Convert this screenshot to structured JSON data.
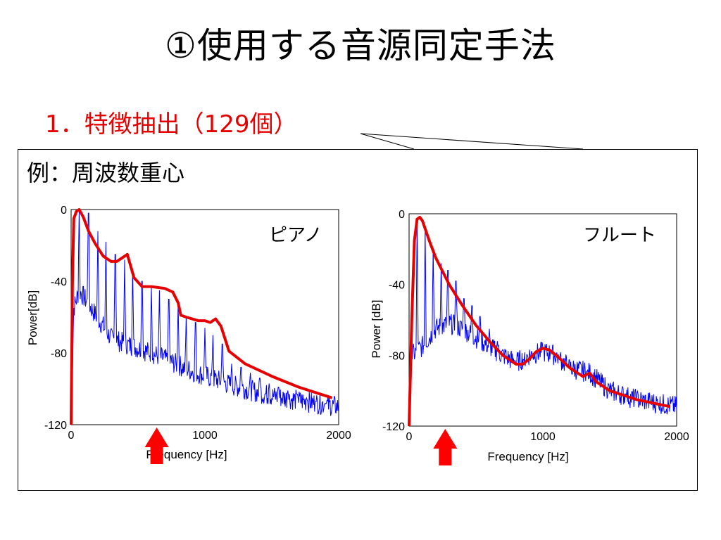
{
  "title": "①使用する音源同定手法",
  "subtitle": "1．特徴抽出（129個）",
  "example_label": "例：周波数重心",
  "colors": {
    "envelope": "#e60000",
    "spectrum": "#0000ff",
    "arrow": "#ff0000",
    "subtitle": "#e60000"
  },
  "chart_data": [
    {
      "type": "line",
      "instrument_label": "ピアノ",
      "xlabel": "Frequency [Hz]",
      "ylabel": "Power[dB]",
      "xlim": [
        0,
        2000
      ],
      "ylim": [
        -120,
        0
      ],
      "xticks": [
        0,
        1000,
        2000
      ],
      "yticks": [
        0,
        -40,
        -80,
        -120
      ],
      "spectral_centroid_hz": 640,
      "series": [
        {
          "role": "envelope",
          "x": [
            0,
            10,
            20,
            40,
            60,
            90,
            130,
            180,
            240,
            300,
            340,
            380,
            420,
            470,
            530,
            600,
            700,
            760,
            800,
            820,
            860,
            950,
            1000,
            1040,
            1080,
            1120,
            1180,
            1300,
            1500,
            1700,
            1950
          ],
          "y": [
            -120,
            -40,
            -5,
            -1,
            0,
            -4,
            -12,
            -19,
            -26,
            -29,
            -29,
            -27,
            -25,
            -38,
            -43,
            -43,
            -44,
            -46,
            -52,
            -59,
            -60,
            -62,
            -62,
            -63,
            -61,
            -65,
            -79,
            -86,
            -93,
            -99,
            -105
          ]
        },
        {
          "role": "spectrum",
          "base": [
            [
              0,
              -120
            ],
            [
              20,
              -55
            ],
            [
              60,
              -45
            ],
            [
              150,
              -55
            ],
            [
              300,
              -72
            ],
            [
              600,
              -80
            ],
            [
              900,
              -90
            ],
            [
              1200,
              -98
            ],
            [
              1500,
              -104
            ],
            [
              2000,
              -110
            ]
          ],
          "peaks": [
            [
              60,
              -1
            ],
            [
              130,
              -2
            ],
            [
              200,
              -12
            ],
            [
              260,
              -18
            ],
            [
              330,
              -25
            ],
            [
              400,
              -28
            ],
            [
              460,
              -33
            ],
            [
              530,
              -40
            ],
            [
              600,
              -43
            ],
            [
              660,
              -45
            ],
            [
              730,
              -50
            ],
            [
              800,
              -52
            ],
            [
              860,
              -60
            ],
            [
              930,
              -63
            ],
            [
              1000,
              -66
            ],
            [
              1060,
              -70
            ],
            [
              1130,
              -75
            ],
            [
              1200,
              -86
            ],
            [
              1270,
              -88
            ],
            [
              1340,
              -91
            ],
            [
              1410,
              -94
            ],
            [
              1480,
              -97
            ],
            [
              1550,
              -99
            ],
            [
              1620,
              -101
            ],
            [
              1690,
              -103
            ],
            [
              1760,
              -105
            ],
            [
              1830,
              -107
            ],
            [
              1900,
              -108
            ]
          ]
        }
      ]
    },
    {
      "type": "line",
      "instrument_label": "フルート",
      "xlabel": "Frequency [Hz]",
      "ylabel": "Power [dB]",
      "xlim": [
        0,
        2000
      ],
      "ylim": [
        -120,
        0
      ],
      "xticks": [
        0,
        1000,
        2000
      ],
      "yticks": [
        0,
        -40,
        -80,
        -120
      ],
      "spectral_centroid_hz": 270,
      "series": [
        {
          "role": "envelope",
          "x": [
            0,
            20,
            40,
            60,
            80,
            100,
            150,
            200,
            300,
            400,
            500,
            600,
            700,
            800,
            850,
            900,
            950,
            1000,
            1050,
            1100,
            1200,
            1300,
            1350,
            1400,
            1500,
            1700,
            1950
          ],
          "y": [
            -120,
            -60,
            -15,
            -3,
            -2,
            -4,
            -15,
            -25,
            -40,
            -52,
            -63,
            -72,
            -80,
            -85,
            -85,
            -82,
            -78,
            -76,
            -77,
            -80,
            -87,
            -92,
            -90,
            -95,
            -100,
            -105,
            -109
          ]
        },
        {
          "role": "spectrum",
          "base": [
            [
              0,
              -120
            ],
            [
              20,
              -80
            ],
            [
              100,
              -75
            ],
            [
              200,
              -65
            ],
            [
              300,
              -62
            ],
            [
              400,
              -65
            ],
            [
              500,
              -70
            ],
            [
              600,
              -75
            ],
            [
              700,
              -80
            ],
            [
              800,
              -84
            ],
            [
              900,
              -80
            ],
            [
              1000,
              -78
            ],
            [
              1100,
              -80
            ],
            [
              1200,
              -87
            ],
            [
              1350,
              -90
            ],
            [
              1500,
              -100
            ],
            [
              1700,
              -105
            ],
            [
              2000,
              -109
            ]
          ],
          "peaks": [
            [
              60,
              -3
            ],
            [
              120,
              -8
            ],
            [
              180,
              -20
            ],
            [
              240,
              -28
            ],
            [
              290,
              -32
            ],
            [
              350,
              -38
            ],
            [
              410,
              -48
            ],
            [
              470,
              -52
            ],
            [
              530,
              -58
            ],
            [
              600,
              -65
            ],
            [
              660,
              -72
            ],
            [
              720,
              -78
            ],
            [
              790,
              -83
            ],
            [
              860,
              -83
            ],
            [
              920,
              -79
            ],
            [
              1000,
              -76
            ],
            [
              1060,
              -78
            ],
            [
              1120,
              -82
            ],
            [
              1190,
              -86
            ],
            [
              1260,
              -90
            ],
            [
              1330,
              -89
            ],
            [
              1400,
              -94
            ],
            [
              1470,
              -98
            ],
            [
              1540,
              -100
            ],
            [
              1620,
              -102
            ],
            [
              1700,
              -104
            ],
            [
              1780,
              -106
            ],
            [
              1860,
              -108
            ]
          ]
        }
      ]
    }
  ]
}
